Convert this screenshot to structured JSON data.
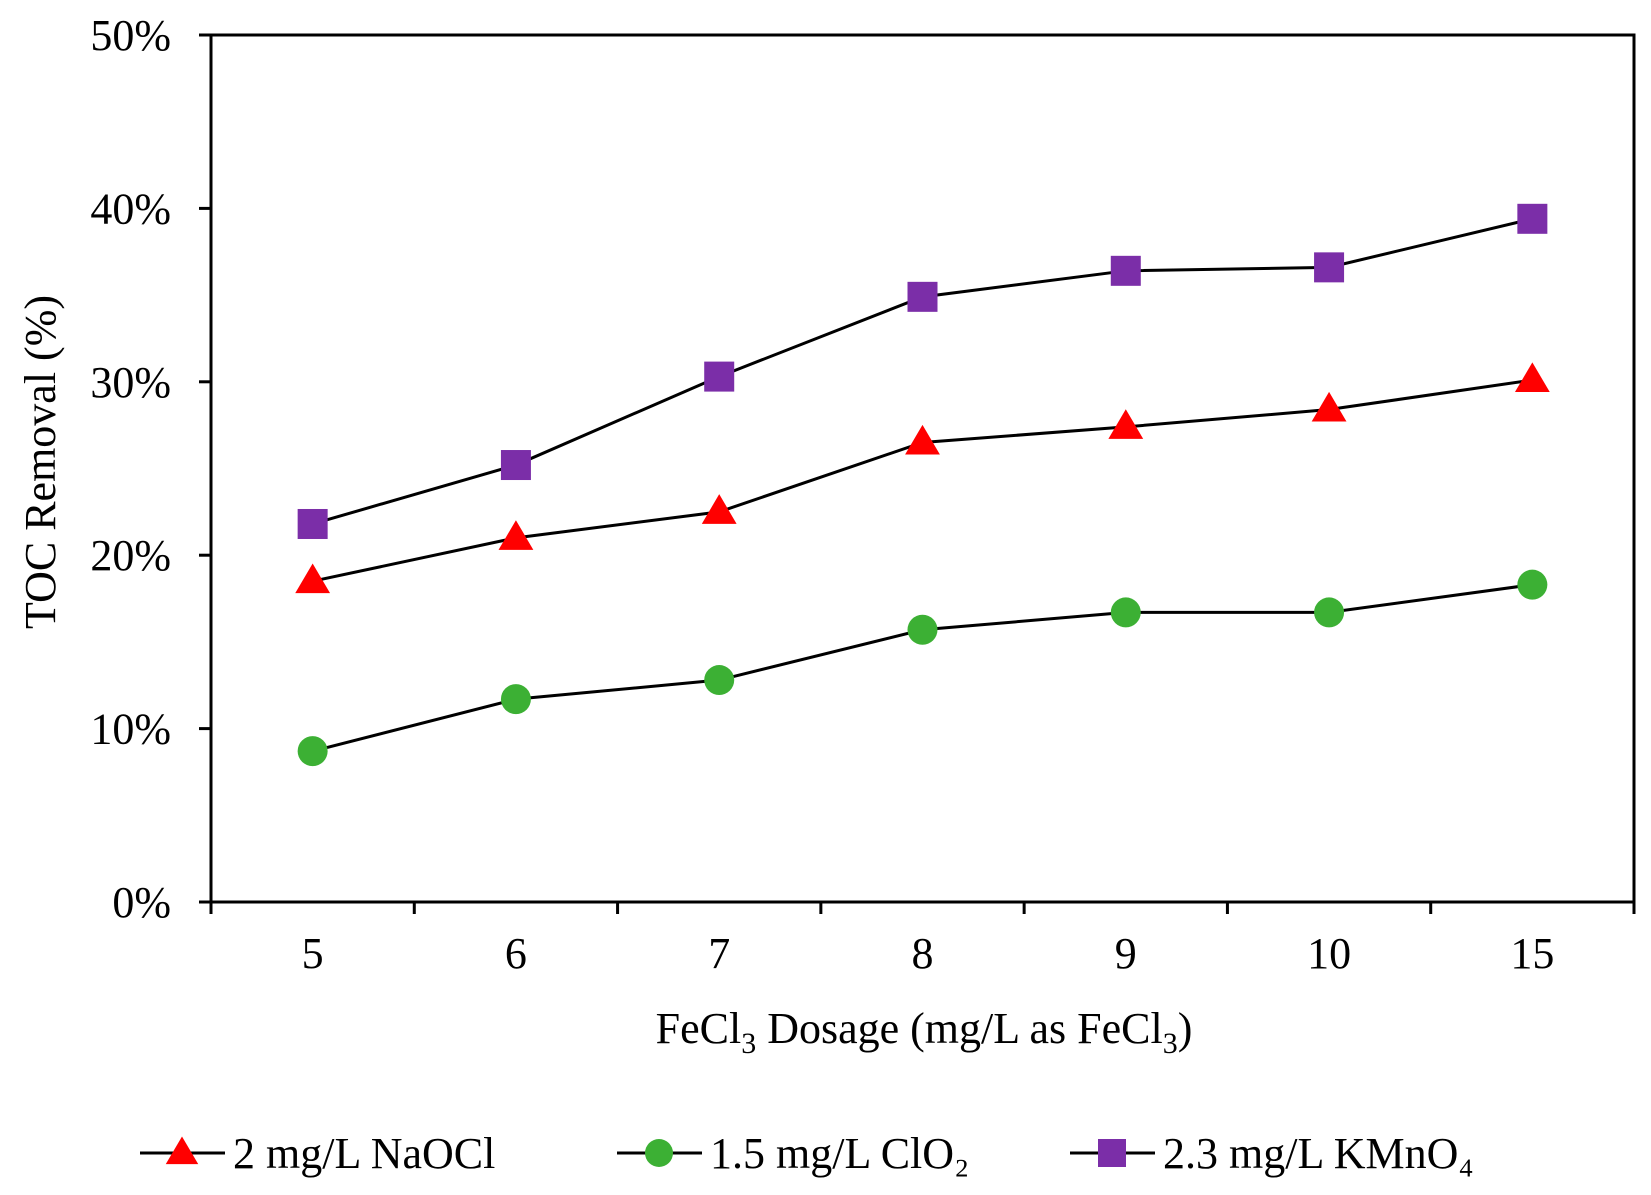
{
  "chart_data": {
    "type": "line",
    "title": "",
    "xlabel": "FeCl3 Dosage (mg/L as FeCl3)",
    "xlabel_parts": {
      "p1": "FeCl",
      "sub1": "3",
      "p2": " Dosage (mg/L as FeCl",
      "sub2": "3",
      "p3": ")"
    },
    "ylabel": "TOC Removal (%)",
    "categories": [
      "5",
      "6",
      "7",
      "8",
      "9",
      "10",
      "15"
    ],
    "ylim": [
      0,
      50
    ],
    "yticks": [
      0,
      10,
      20,
      30,
      40,
      50
    ],
    "ytick_labels": [
      "0%",
      "10%",
      "20%",
      "30%",
      "40%",
      "50%"
    ],
    "grid": false,
    "legend_position": "bottom",
    "series": [
      {
        "name": "2 mg/L NaOCl",
        "marker": "triangle",
        "color": "#ff0000",
        "values": [
          18.5,
          21.0,
          22.5,
          26.5,
          27.4,
          28.4,
          30.1
        ]
      },
      {
        "name": "1.5 mg/L ClO₂",
        "marker": "circle",
        "color": "#3cb034",
        "values": [
          8.7,
          11.7,
          12.8,
          15.7,
          16.7,
          16.7,
          18.3
        ]
      },
      {
        "name": "2.3 mg/L KMnO₄",
        "marker": "square",
        "color": "#7b2ea8",
        "values": [
          21.8,
          25.2,
          30.3,
          34.9,
          36.4,
          36.6,
          39.4
        ]
      }
    ]
  }
}
